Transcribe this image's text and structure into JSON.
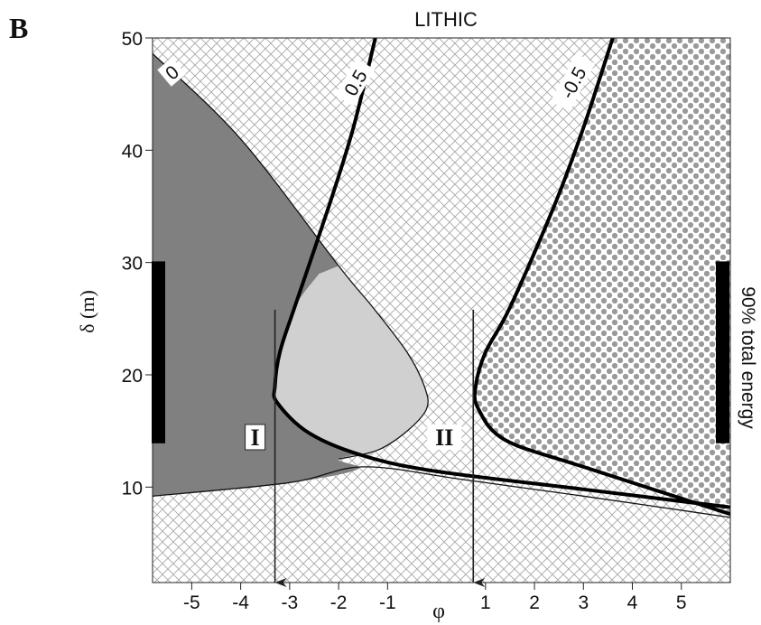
{
  "panel_label": "B",
  "chart_data": {
    "type": "contour",
    "title": "LITHIC",
    "xlabel": "φ",
    "ylabel": "δ (m)",
    "xlim": [
      -5.8,
      6.0
    ],
    "ylim": [
      1.5,
      50
    ],
    "xticks": [
      -5,
      -4,
      -3,
      -2,
      -1,
      1,
      2,
      3,
      4,
      5
    ],
    "xtick_labels": [
      "-5",
      "-4",
      "-3",
      "-2",
      "-1",
      "1",
      "2",
      "3",
      "4",
      "5"
    ],
    "yticks": [
      10,
      20,
      30,
      40,
      50
    ],
    "ytick_labels": [
      "10",
      "20",
      "30",
      "40",
      "50"
    ],
    "contours": [
      {
        "label": "0",
        "points": [
          [
            -5.8,
            48.6
          ],
          [
            -4,
            41
          ],
          [
            -2,
            29.7
          ],
          [
            -1.3,
            26
          ],
          [
            -0.6,
            22
          ],
          [
            -0.25,
            19
          ],
          [
            -0.2,
            17
          ],
          [
            -0.6,
            15
          ],
          [
            -1.2,
            13.3
          ],
          [
            -2.0,
            12.5
          ]
        ]
      },
      {
        "label": "0.5",
        "points": [
          [
            -1.25,
            50.0
          ],
          [
            -1.7,
            42
          ],
          [
            -2.2,
            35
          ],
          [
            -2.9,
            26
          ],
          [
            -3.2,
            22
          ],
          [
            -3.3,
            19
          ],
          [
            -3.25,
            17.5
          ],
          [
            -2.6,
            14.8
          ],
          [
            -1.5,
            12.8
          ],
          [
            0.0,
            11.4
          ],
          [
            3.0,
            9.8
          ],
          [
            6.0,
            8.2
          ]
        ]
      },
      {
        "label": "-0.5",
        "points": [
          [
            3.6,
            50.0
          ],
          [
            3.0,
            42
          ],
          [
            2.4,
            35
          ],
          [
            1.5,
            26
          ],
          [
            1.0,
            22
          ],
          [
            0.8,
            19
          ],
          [
            0.85,
            17.0
          ],
          [
            1.4,
            14.2
          ],
          [
            3.0,
            11.8
          ],
          [
            6.0,
            7.6
          ]
        ]
      },
      {
        "label": "",
        "points": [
          [
            -5.8,
            9.2
          ],
          [
            -3,
            10.4
          ],
          [
            -1.5,
            11.8
          ],
          [
            0.5,
            10.7
          ],
          [
            3.0,
            9.2
          ],
          [
            6.0,
            7.3
          ]
        ]
      }
    ],
    "regions": [
      {
        "fill": "dark-gray",
        "color": "#808080"
      },
      {
        "fill": "light-gray",
        "color": "#d0d0d0"
      },
      {
        "fill": "crosshatch",
        "color": "#9a9a9a"
      },
      {
        "fill": "dotted",
        "color": "#9a9a9a"
      }
    ],
    "arrows": [
      {
        "label": "I",
        "x": -3.3,
        "y_start": 25.8,
        "y_end": 1.5
      },
      {
        "label": "II",
        "x": 0.75,
        "y_start": 25.8,
        "y_end": 1.5
      }
    ],
    "bars": [
      {
        "side": "left",
        "y_range": [
          13.9,
          30.1
        ],
        "label": ""
      },
      {
        "side": "right",
        "y_range": [
          13.9,
          30.1
        ],
        "label": "90% total energy"
      }
    ]
  }
}
